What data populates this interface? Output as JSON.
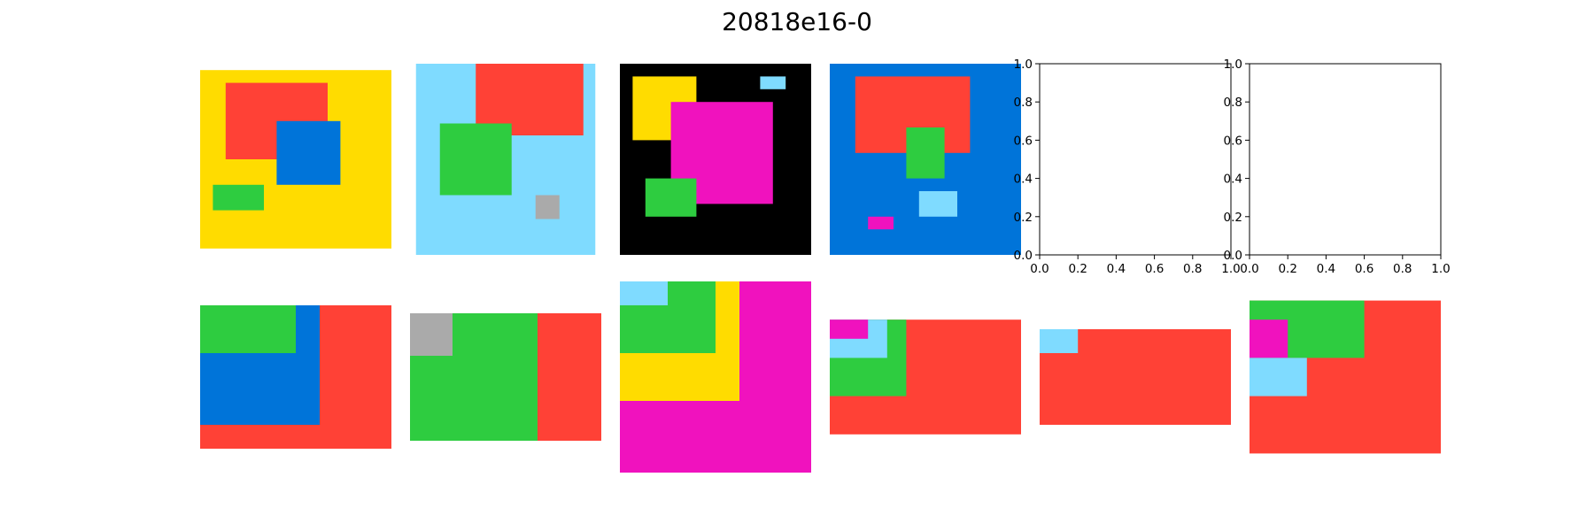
{
  "title": "20818e16-0",
  "palette": {
    "0": "#000000",
    "1": "#0074D9",
    "2": "#FF4136",
    "3": "#2ECC40",
    "4": "#FFDC00",
    "5": "#AAAAAA",
    "6": "#F012BE",
    "8": "#7FDBFF"
  },
  "pairs": [
    {
      "input": {
        "rows": 14,
        "cols": 15,
        "background": "4",
        "rects": [
          {
            "color": "2",
            "r0": 1,
            "c0": 2,
            "r1": 7,
            "c1": 10
          },
          {
            "color": "1",
            "r0": 4,
            "c0": 6,
            "r1": 9,
            "c1": 11
          },
          {
            "color": "3",
            "r0": 9,
            "c0": 1,
            "r1": 11,
            "c1": 5
          }
        ]
      },
      "output": {
        "rows": 6,
        "cols": 8,
        "background": "2",
        "rects": [
          {
            "color": "1",
            "r0": 0,
            "c0": 0,
            "r1": 5,
            "c1": 5
          },
          {
            "color": "3",
            "r0": 0,
            "c0": 0,
            "r1": 2,
            "c1": 4
          }
        ]
      }
    },
    {
      "input": {
        "rows": 16,
        "cols": 15,
        "background": "8",
        "rects": [
          {
            "color": "2",
            "r0": 0,
            "c0": 5,
            "r1": 6,
            "c1": 14
          },
          {
            "color": "3",
            "r0": 5,
            "c0": 2,
            "r1": 11,
            "c1": 8
          },
          {
            "color": "5",
            "r0": 11,
            "c0": 10,
            "r1": 13,
            "c1": 12
          }
        ]
      },
      "output": {
        "rows": 6,
        "cols": 9,
        "background": "2",
        "rects": [
          {
            "color": "3",
            "r0": 0,
            "c0": 0,
            "r1": 6,
            "c1": 6
          },
          {
            "color": "5",
            "r0": 0,
            "c0": 0,
            "r1": 2,
            "c1": 2
          }
        ]
      }
    },
    {
      "input": {
        "rows": 15,
        "cols": 15,
        "background": "0",
        "rects": [
          {
            "color": "4",
            "r0": 1,
            "c0": 1,
            "r1": 6,
            "c1": 6
          },
          {
            "color": "6",
            "r0": 3,
            "c0": 4,
            "r1": 11,
            "c1": 12
          },
          {
            "color": "3",
            "r0": 9,
            "c0": 2,
            "r1": 12,
            "c1": 6
          },
          {
            "color": "8",
            "r0": 1,
            "c0": 11,
            "r1": 2,
            "c1": 13
          }
        ]
      },
      "output": {
        "rows": 8,
        "cols": 8,
        "background": "6",
        "rects": [
          {
            "color": "4",
            "r0": 0,
            "c0": 0,
            "r1": 5,
            "c1": 5
          },
          {
            "color": "3",
            "r0": 0,
            "c0": 0,
            "r1": 3,
            "c1": 4
          },
          {
            "color": "8",
            "r0": 0,
            "c0": 0,
            "r1": 1,
            "c1": 2
          }
        ]
      }
    },
    {
      "input": {
        "rows": 15,
        "cols": 15,
        "background": "1",
        "rects": [
          {
            "color": "2",
            "r0": 1,
            "c0": 2,
            "r1": 7,
            "c1": 11
          },
          {
            "color": "3",
            "r0": 5,
            "c0": 6,
            "r1": 9,
            "c1": 9
          },
          {
            "color": "8",
            "r0": 10,
            "c0": 7,
            "r1": 12,
            "c1": 10
          },
          {
            "color": "6",
            "r0": 12,
            "c0": 3,
            "r1": 13,
            "c1": 5
          }
        ]
      },
      "output": {
        "rows": 6,
        "cols": 10,
        "background": "2",
        "rects": [
          {
            "color": "3",
            "r0": 0,
            "c0": 0,
            "r1": 4,
            "c1": 4
          },
          {
            "color": "8",
            "r0": 0,
            "c0": 0,
            "r1": 2,
            "c1": 3
          },
          {
            "color": "6",
            "r0": 0,
            "c0": 0,
            "r1": 1,
            "c1": 2
          }
        ]
      }
    },
    {
      "input": {
        "empty": true,
        "ticks": [
          "0.0",
          "0.2",
          "0.4",
          "0.6",
          "0.8",
          "1.0"
        ]
      },
      "output": {
        "rows": 4,
        "cols": 8,
        "background": "2",
        "rects": [
          {
            "color": "8",
            "r0": 0,
            "c0": 0,
            "r1": 1,
            "c1": 1.6
          }
        ]
      }
    },
    {
      "input": {
        "empty": true,
        "ticks": [
          "0.0",
          "0.2",
          "0.4",
          "0.6",
          "0.8",
          "1.0"
        ]
      },
      "output": {
        "rows": 8,
        "cols": 10,
        "background": "2",
        "rects": [
          {
            "color": "3",
            "r0": 0,
            "c0": 0,
            "r1": 3,
            "c1": 6
          },
          {
            "color": "6",
            "r0": 1,
            "c0": 0,
            "r1": 3,
            "c1": 2
          },
          {
            "color": "8",
            "r0": 3,
            "c0": 0,
            "r1": 5,
            "c1": 3
          }
        ]
      }
    }
  ]
}
